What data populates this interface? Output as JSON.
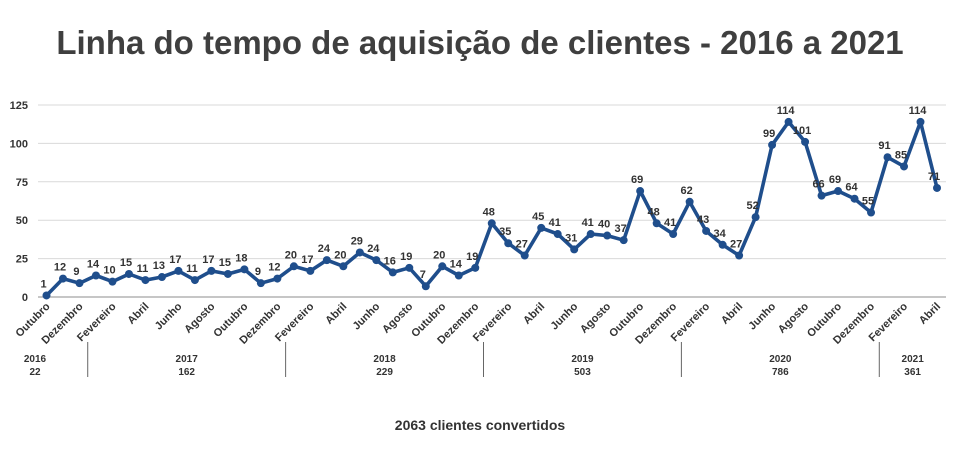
{
  "title": "Linha do tempo de aquisição de clientes - 2016 a 2021",
  "footer": "2063 clientes convertidos",
  "chart_data": {
    "type": "line",
    "color": "#1f4e8c",
    "ylim": [
      0,
      125
    ],
    "yticks": [
      0,
      25,
      50,
      75,
      100,
      125
    ],
    "grid": true,
    "values": [
      1,
      12,
      9,
      14,
      10,
      15,
      11,
      13,
      17,
      11,
      17,
      15,
      18,
      9,
      12,
      20,
      17,
      24,
      20,
      29,
      24,
      16,
      19,
      7,
      20,
      14,
      19,
      48,
      35,
      27,
      45,
      41,
      31,
      41,
      40,
      37,
      69,
      48,
      41,
      62,
      43,
      34,
      27,
      52,
      99,
      114,
      101,
      66,
      69,
      64,
      55,
      91,
      85,
      114,
      71
    ],
    "month_labels": [
      {
        "index": 0,
        "label": "Outubro"
      },
      {
        "index": 2,
        "label": "Dezembro"
      },
      {
        "index": 4,
        "label": "Fevereiro"
      },
      {
        "index": 6,
        "label": "Abril"
      },
      {
        "index": 8,
        "label": "Junho"
      },
      {
        "index": 10,
        "label": "Agosto"
      },
      {
        "index": 12,
        "label": "Outubro"
      },
      {
        "index": 14,
        "label": "Dezembro"
      },
      {
        "index": 16,
        "label": "Fevereiro"
      },
      {
        "index": 18,
        "label": "Abril"
      },
      {
        "index": 20,
        "label": "Junho"
      },
      {
        "index": 22,
        "label": "Agosto"
      },
      {
        "index": 24,
        "label": "Outubro"
      },
      {
        "index": 26,
        "label": "Dezembro"
      },
      {
        "index": 28,
        "label": "Fevereiro"
      },
      {
        "index": 30,
        "label": "Abril"
      },
      {
        "index": 32,
        "label": "Junho"
      },
      {
        "index": 34,
        "label": "Agosto"
      },
      {
        "index": 36,
        "label": "Outubro"
      },
      {
        "index": 38,
        "label": "Dezembro"
      },
      {
        "index": 40,
        "label": "Fevereiro"
      },
      {
        "index": 42,
        "label": "Abril"
      },
      {
        "index": 44,
        "label": "Junho"
      },
      {
        "index": 46,
        "label": "Agosto"
      },
      {
        "index": 48,
        "label": "Outubro"
      },
      {
        "index": 50,
        "label": "Dezembro"
      },
      {
        "index": 52,
        "label": "Fevereiro"
      },
      {
        "index": 54,
        "label": "Abril"
      }
    ],
    "year_groups": [
      {
        "year": "2016",
        "total": "22",
        "start": 0,
        "end": 2
      },
      {
        "year": "2017",
        "total": "162",
        "start": 3,
        "end": 14
      },
      {
        "year": "2018",
        "total": "229",
        "start": 15,
        "end": 26
      },
      {
        "year": "2019",
        "total": "503",
        "start": 27,
        "end": 38
      },
      {
        "year": "2020",
        "total": "786",
        "start": 39,
        "end": 50
      },
      {
        "year": "2021",
        "total": "361",
        "start": 51,
        "end": 54
      }
    ]
  }
}
